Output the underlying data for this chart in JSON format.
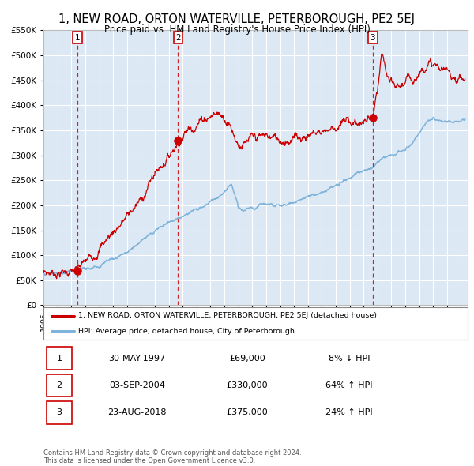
{
  "title": "1, NEW ROAD, ORTON WATERVILLE, PETERBOROUGH, PE2 5EJ",
  "subtitle": "Price paid vs. HM Land Registry's House Price Index (HPI)",
  "title_fontsize": 10.5,
  "subtitle_fontsize": 8.5,
  "bg_color": "#dce9f5",
  "fig_bg_color": "#ffffff",
  "line1_color": "#cc0000",
  "line2_color": "#7fb3d9",
  "sale_marker_color": "#cc0000",
  "sale_marker_size": 7,
  "ylim": [
    0,
    550000
  ],
  "yticks": [
    0,
    50000,
    100000,
    150000,
    200000,
    250000,
    300000,
    350000,
    400000,
    450000,
    500000,
    550000
  ],
  "ytick_labels": [
    "£0",
    "£50K",
    "£100K",
    "£150K",
    "£200K",
    "£250K",
    "£300K",
    "£350K",
    "£400K",
    "£450K",
    "£500K",
    "£550K"
  ],
  "xlim_start": 1995.0,
  "xlim_end": 2025.5,
  "sales": [
    {
      "date": 1997.41,
      "price": 69000,
      "label": "1"
    },
    {
      "date": 2004.67,
      "price": 330000,
      "label": "2"
    },
    {
      "date": 2018.65,
      "price": 375000,
      "label": "3"
    }
  ],
  "sale_table": [
    {
      "num": "1",
      "date": "30-MAY-1997",
      "price": "£69,000",
      "change": "8% ↓ HPI"
    },
    {
      "num": "2",
      "date": "03-SEP-2004",
      "price": "£330,000",
      "change": "64% ↑ HPI"
    },
    {
      "num": "3",
      "date": "23-AUG-2018",
      "price": "£375,000",
      "change": "24% ↑ HPI"
    }
  ],
  "legend_line1": "1, NEW ROAD, ORTON WATERVILLE, PETERBOROUGH, PE2 5EJ (detached house)",
  "legend_line2": "HPI: Average price, detached house, City of Peterborough",
  "footer1": "Contains HM Land Registry data © Crown copyright and database right 2024.",
  "footer2": "This data is licensed under the Open Government Licence v3.0.",
  "prop_pts": [
    [
      1995.0,
      65000
    ],
    [
      1996.0,
      66000
    ],
    [
      1996.5,
      67000
    ],
    [
      1997.41,
      69000
    ],
    [
      1998.0,
      85000
    ],
    [
      1999.0,
      115000
    ],
    [
      2000.0,
      148000
    ],
    [
      2001.0,
      178000
    ],
    [
      2002.0,
      210000
    ],
    [
      2003.0,
      265000
    ],
    [
      2004.0,
      300000
    ],
    [
      2004.67,
      330000
    ],
    [
      2005.5,
      355000
    ],
    [
      2006.5,
      375000
    ],
    [
      2007.5,
      385000
    ],
    [
      2008.2,
      375000
    ],
    [
      2009.0,
      325000
    ],
    [
      2009.5,
      320000
    ],
    [
      2010.0,
      330000
    ],
    [
      2011.0,
      338000
    ],
    [
      2012.0,
      332000
    ],
    [
      2013.0,
      335000
    ],
    [
      2014.0,
      342000
    ],
    [
      2015.0,
      350000
    ],
    [
      2016.0,
      358000
    ],
    [
      2017.0,
      368000
    ],
    [
      2018.0,
      365000
    ],
    [
      2018.65,
      375000
    ],
    [
      2019.0,
      420000
    ],
    [
      2019.3,
      495000
    ],
    [
      2019.6,
      465000
    ],
    [
      2019.9,
      440000
    ],
    [
      2020.3,
      430000
    ],
    [
      2020.7,
      440000
    ],
    [
      2021.0,
      445000
    ],
    [
      2021.5,
      455000
    ],
    [
      2022.0,
      465000
    ],
    [
      2022.5,
      488000
    ],
    [
      2023.0,
      480000
    ],
    [
      2023.5,
      472000
    ],
    [
      2024.0,
      465000
    ],
    [
      2024.5,
      460000
    ],
    [
      2025.0,
      455000
    ],
    [
      2025.3,
      452000
    ]
  ],
  "hpi_pts": [
    [
      1995.0,
      62000
    ],
    [
      1995.5,
      63000
    ],
    [
      1996.0,
      64500
    ],
    [
      1996.5,
      66000
    ],
    [
      1997.0,
      67500
    ],
    [
      1997.41,
      69000
    ],
    [
      1997.5,
      70000
    ],
    [
      1998.0,
      73000
    ],
    [
      1999.0,
      80000
    ],
    [
      2000.0,
      92000
    ],
    [
      2001.0,
      108000
    ],
    [
      2002.0,
      128000
    ],
    [
      2003.0,
      150000
    ],
    [
      2004.0,
      165000
    ],
    [
      2004.67,
      172000
    ],
    [
      2005.0,
      178000
    ],
    [
      2005.5,
      185000
    ],
    [
      2006.0,
      192000
    ],
    [
      2006.5,
      198000
    ],
    [
      2007.0,
      206000
    ],
    [
      2007.5,
      215000
    ],
    [
      2008.0,
      228000
    ],
    [
      2008.5,
      238000
    ],
    [
      2009.0,
      195000
    ],
    [
      2009.5,
      188000
    ],
    [
      2010.0,
      195000
    ],
    [
      2010.5,
      198000
    ],
    [
      2011.0,
      200000
    ],
    [
      2011.5,
      198000
    ],
    [
      2012.0,
      198000
    ],
    [
      2012.5,
      200000
    ],
    [
      2013.0,
      204000
    ],
    [
      2013.5,
      210000
    ],
    [
      2014.0,
      216000
    ],
    [
      2014.5,
      222000
    ],
    [
      2015.0,
      226000
    ],
    [
      2015.5,
      232000
    ],
    [
      2016.0,
      240000
    ],
    [
      2016.5,
      248000
    ],
    [
      2017.0,
      256000
    ],
    [
      2017.5,
      264000
    ],
    [
      2018.0,
      270000
    ],
    [
      2018.65,
      275000
    ],
    [
      2019.0,
      285000
    ],
    [
      2019.5,
      295000
    ],
    [
      2020.0,
      298000
    ],
    [
      2020.5,
      305000
    ],
    [
      2021.0,
      312000
    ],
    [
      2021.5,
      328000
    ],
    [
      2022.0,
      345000
    ],
    [
      2022.5,
      362000
    ],
    [
      2023.0,
      375000
    ],
    [
      2023.5,
      372000
    ],
    [
      2024.0,
      368000
    ],
    [
      2024.5,
      366000
    ],
    [
      2025.0,
      368000
    ],
    [
      2025.3,
      369000
    ]
  ]
}
